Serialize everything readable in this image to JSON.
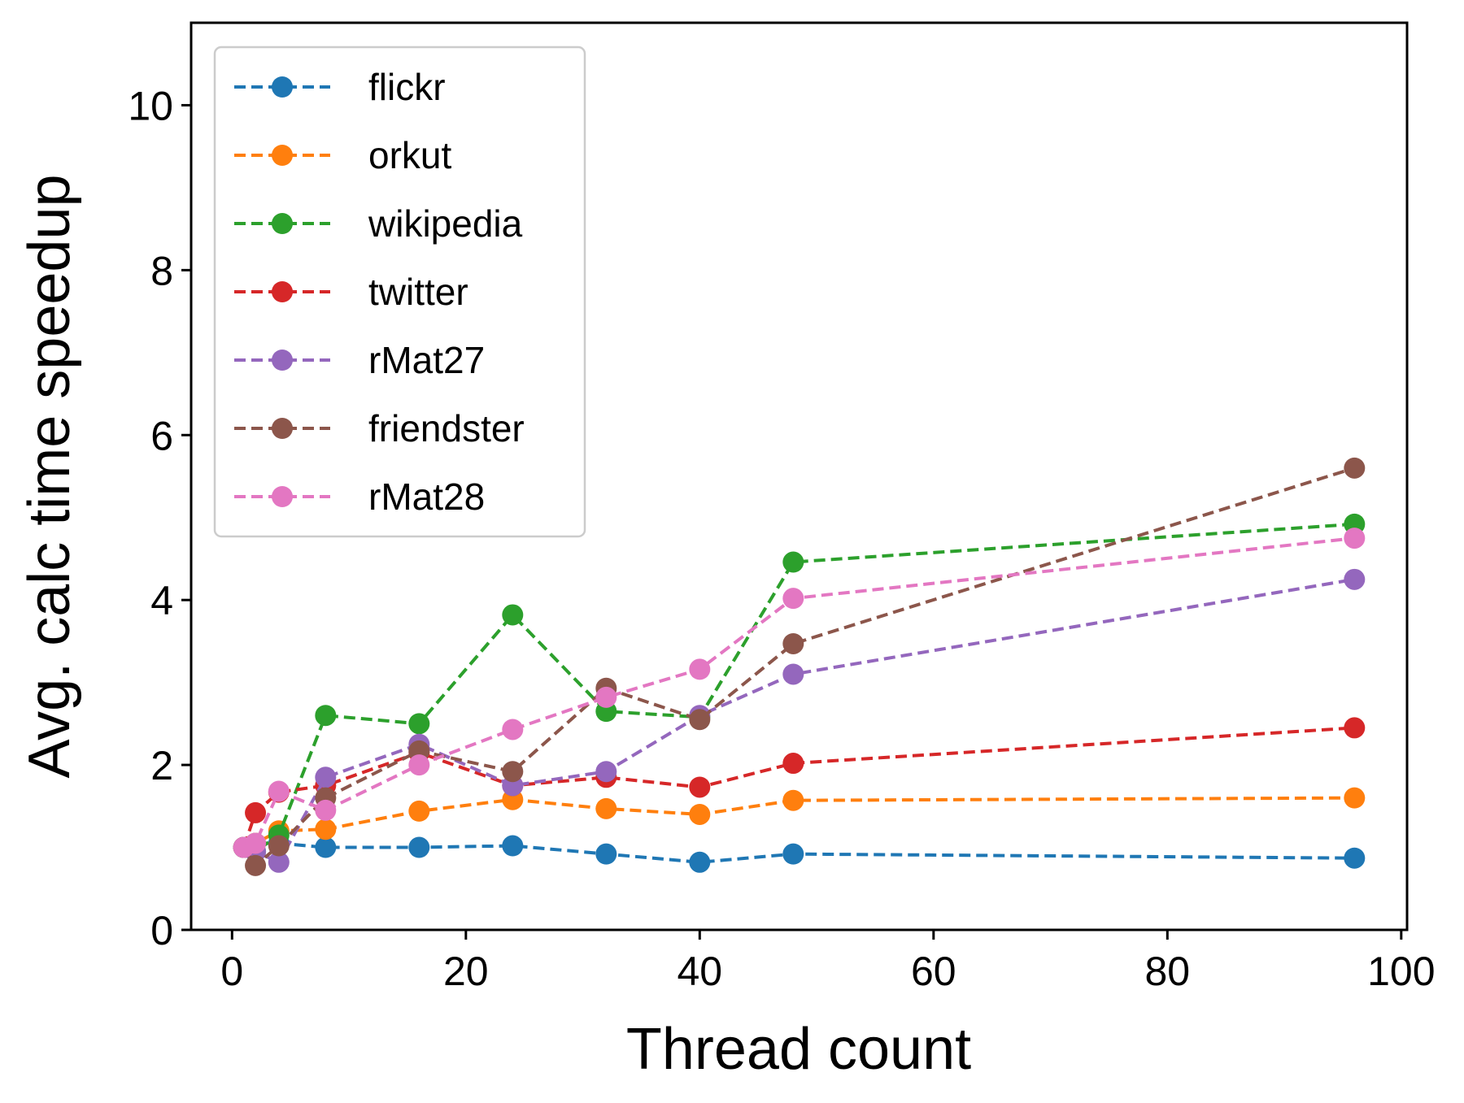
{
  "chart_data": {
    "type": "line",
    "xlabel": "Thread count",
    "ylabel": "Avg. calc time speedup",
    "xlim": [
      -3.5,
      100.5
    ],
    "ylim": [
      0,
      11
    ],
    "xticks": [
      "0",
      "20",
      "40",
      "60",
      "80",
      "100"
    ],
    "yticks": [
      "0",
      "2",
      "4",
      "6",
      "8",
      "10"
    ],
    "grid": false,
    "legend_position": "top-left",
    "line_style": "dashed",
    "marker": "circle",
    "series": [
      {
        "name": "flickr",
        "color": "#1f77b4",
        "x": [
          1,
          2,
          4,
          8,
          16,
          24,
          32,
          40,
          48,
          96
        ],
        "y": [
          1.0,
          1.05,
          1.05,
          1.0,
          1.0,
          1.02,
          0.92,
          0.82,
          0.92,
          0.87
        ]
      },
      {
        "name": "orkut",
        "color": "#ff7f0e",
        "x": [
          1,
          2,
          4,
          8,
          16,
          24,
          32,
          40,
          48,
          96
        ],
        "y": [
          1.0,
          1.05,
          1.2,
          1.22,
          1.44,
          1.58,
          1.47,
          1.4,
          1.57,
          1.6
        ]
      },
      {
        "name": "wikipedia",
        "color": "#2ca02c",
        "x": [
          1,
          2,
          4,
          8,
          16,
          24,
          32,
          40,
          48,
          96
        ],
        "y": [
          1.0,
          0.95,
          1.15,
          2.6,
          2.5,
          3.82,
          2.65,
          2.58,
          4.46,
          4.92
        ]
      },
      {
        "name": "twitter",
        "color": "#d62728",
        "x": [
          1,
          2,
          4,
          8,
          16,
          24,
          32,
          40,
          48,
          96
        ],
        "y": [
          1.0,
          1.42,
          1.67,
          1.75,
          2.15,
          1.75,
          1.85,
          1.73,
          2.02,
          2.45
        ]
      },
      {
        "name": "rMat27",
        "color": "#9467bd",
        "x": [
          1,
          2,
          4,
          8,
          16,
          24,
          32,
          40,
          48,
          96
        ],
        "y": [
          1.0,
          0.95,
          0.82,
          1.85,
          2.25,
          1.75,
          1.92,
          2.6,
          3.1,
          4.25
        ]
      },
      {
        "name": "friendster",
        "color": "#8c564b",
        "x": [
          1,
          2,
          4,
          8,
          16,
          24,
          32,
          40,
          48,
          96
        ],
        "y": [
          1.0,
          0.78,
          1.02,
          1.6,
          2.17,
          1.92,
          2.93,
          2.55,
          3.47,
          5.6
        ]
      },
      {
        "name": "rMat28",
        "color": "#e377c2",
        "x": [
          1,
          2,
          4,
          8,
          16,
          24,
          32,
          40,
          48,
          96
        ],
        "y": [
          1.0,
          1.05,
          1.68,
          1.45,
          2.0,
          2.43,
          2.82,
          3.16,
          4.02,
          4.75
        ]
      }
    ]
  }
}
